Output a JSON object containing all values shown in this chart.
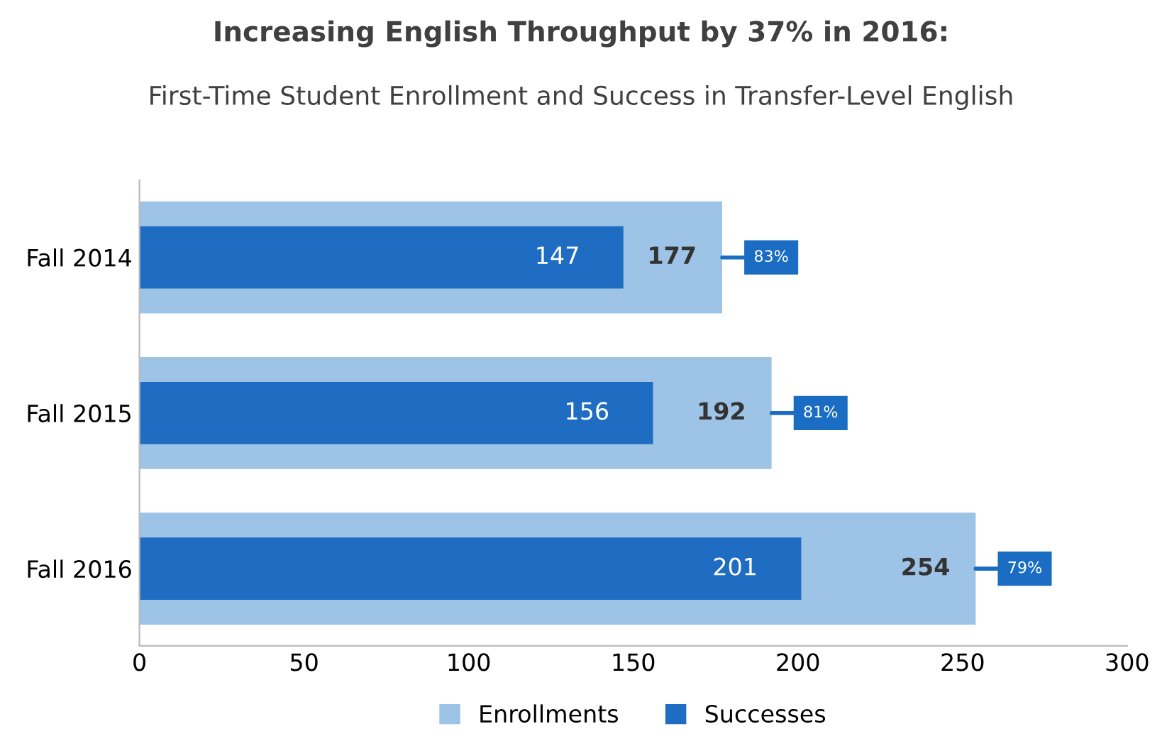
{
  "chart_data": {
    "type": "bar",
    "orientation": "horizontal",
    "title": "Increasing English Throughput by 37% in 2016:",
    "subtitle": "First-Time Student Enrollment and Success in Transfer-Level English",
    "categories": [
      "Fall 2014",
      "Fall 2015",
      "Fall 2016"
    ],
    "series": [
      {
        "name": "Enrollments",
        "color": "#9dc3e6",
        "values": [
          177,
          192,
          254
        ]
      },
      {
        "name": "Successes",
        "color": "#1f6dc2",
        "values": [
          147,
          156,
          201
        ]
      }
    ],
    "data_labels": true,
    "annotations": [
      {
        "text": "83%",
        "x": 177,
        "y": "Fall 2014"
      },
      {
        "text": "81%",
        "x": 192,
        "y": "Fall 2015"
      },
      {
        "text": "79%",
        "x": 254,
        "y": "Fall 2016"
      }
    ],
    "xlim": [
      0,
      300
    ],
    "xticks": [
      0,
      50,
      100,
      150,
      200,
      250,
      300
    ],
    "grid": false,
    "legend": "bottom"
  }
}
